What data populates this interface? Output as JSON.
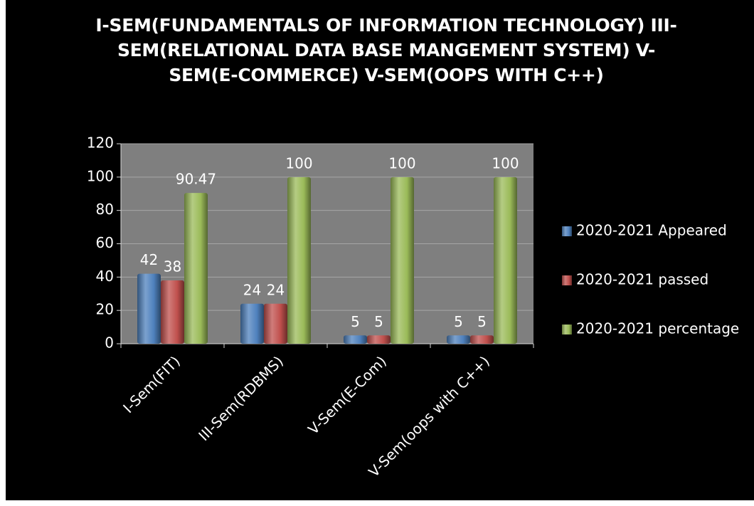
{
  "chart_data": {
    "type": "bar",
    "title": "I-SEM(FUNDAMENTALS OF INFORMATION TECHNOLOGY)   III-SEM(RELATIONAL DATA BASE MANGEMENT SYSTEM)   V-SEM(E-COMMERCE)  V-SEM(OOPS WITH C++)",
    "categories": [
      "I-Sem(FIT)",
      "III-Sem(RDBMS)",
      "V-Sem(E-Com)",
      "V-Sem(oops with C++)"
    ],
    "series": [
      {
        "name": "2020-2021 Appeared",
        "color": "#4f81bd",
        "values": [
          42,
          24,
          5,
          5
        ]
      },
      {
        "name": "2020-2021 passed",
        "color": "#c0504d",
        "values": [
          38,
          24,
          5,
          5
        ]
      },
      {
        "name": "2020-2021 percentage",
        "color": "#9bbb59",
        "values": [
          90.47,
          100,
          100,
          100
        ]
      }
    ],
    "ylim": [
      0,
      120
    ],
    "yticks": [
      0,
      20,
      40,
      60,
      80,
      100,
      120
    ],
    "grid": true,
    "legend": "right"
  }
}
